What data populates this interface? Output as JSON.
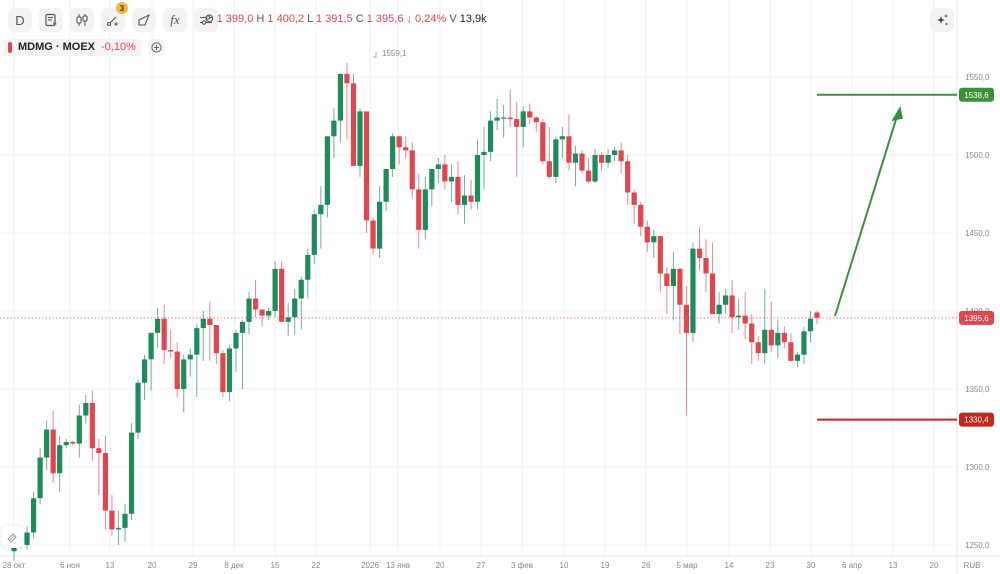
{
  "toolbar": {
    "interval_label": "D",
    "buttons": [
      "interval",
      "chart-type-list",
      "candles",
      "drawings",
      "drawing-tool",
      "indicators",
      "settings"
    ],
    "drawings_badge": "3",
    "indicators_label": "fx"
  },
  "ohlc": {
    "o_label": "O",
    "o": "1 399,0",
    "h_label": "H",
    "h": "1 400,2",
    "l_label": "L",
    "l": "1 391,5",
    "c_label": "C",
    "c": "1 395,6",
    "change": "↓ 0,24%",
    "v_label": "V",
    "v": "13,9k"
  },
  "legend": {
    "symbol": "MDMG · MOEX",
    "change": "-0,10%"
  },
  "colors": {
    "up": "#1f8a5b",
    "down": "#e0464f",
    "target": "#3d8f3a",
    "stop": "#c0271d",
    "grid": "#f0f0f2"
  },
  "chart_data": {
    "type": "candlestick",
    "title": "MDMG · MOEX, D",
    "currency": "RUB",
    "ylim": [
      1245,
      1575
    ],
    "y_ticks": [
      1250.0,
      1300.0,
      1350.0,
      1400.0,
      1450.0,
      1500.0,
      1550.0
    ],
    "y_tick_labels": [
      "1250,0",
      "1300,0",
      "1350,0",
      "1400,0",
      "1450,0",
      "1500,0",
      "1550,0"
    ],
    "x_tick_labels": [
      "28 окт",
      "6 ноя",
      "13",
      "20",
      "29",
      "8 дек",
      "15",
      "22",
      "2026",
      "13 янв",
      "20",
      "27",
      "3 фев",
      "10",
      "19",
      "26",
      "5 мар",
      "14",
      "23",
      "30",
      "6 апр",
      "13",
      "20"
    ],
    "high_annotation": "1559,1",
    "last_price": 1395.6,
    "last_price_label": "1395,6",
    "target_level": 1538.6,
    "target_label": "1538,6",
    "stop_level": 1330.4,
    "stop_label": "1330,4",
    "candles": [
      [
        1246,
        1252,
        1240,
        1250
      ],
      [
        1252,
        1258,
        1248,
        1250
      ],
      [
        1250,
        1262,
        1247,
        1258
      ],
      [
        1258,
        1284,
        1254,
        1280
      ],
      [
        1280,
        1312,
        1276,
        1306
      ],
      [
        1306,
        1330,
        1298,
        1324
      ],
      [
        1324,
        1336,
        1290,
        1296
      ],
      [
        1296,
        1320,
        1284,
        1314
      ],
      [
        1314,
        1318,
        1312,
        1316
      ],
      [
        1316,
        1317,
        1314,
        1315
      ],
      [
        1315,
        1340,
        1306,
        1333
      ],
      [
        1333,
        1346,
        1328,
        1341
      ],
      [
        1341,
        1349,
        1304,
        1312
      ],
      [
        1312,
        1318,
        1282,
        1309
      ],
      [
        1309,
        1320,
        1260,
        1272
      ],
      [
        1272,
        1282,
        1256,
        1260
      ],
      [
        1260,
        1272,
        1250,
        1261
      ],
      [
        1261,
        1276,
        1252,
        1270
      ],
      [
        1270,
        1328,
        1266,
        1322
      ],
      [
        1322,
        1356,
        1318,
        1354
      ],
      [
        1354,
        1372,
        1343,
        1369
      ],
      [
        1369,
        1382,
        1349,
        1386
      ],
      [
        1386,
        1402,
        1376,
        1395
      ],
      [
        1395,
        1404,
        1366,
        1375
      ],
      [
        1375,
        1388,
        1370,
        1374
      ],
      [
        1374,
        1380,
        1345,
        1350
      ],
      [
        1350,
        1372,
        1335,
        1369
      ],
      [
        1369,
        1376,
        1358,
        1372
      ],
      [
        1372,
        1392,
        1345,
        1389
      ],
      [
        1389,
        1400,
        1368,
        1395
      ],
      [
        1395,
        1406,
        1368,
        1391
      ],
      [
        1391,
        1388,
        1366,
        1373
      ],
      [
        1373,
        1375,
        1345,
        1348
      ],
      [
        1348,
        1378,
        1342,
        1376
      ],
      [
        1376,
        1388,
        1361,
        1386
      ],
      [
        1386,
        1394,
        1350,
        1393
      ],
      [
        1393,
        1412,
        1385,
        1408
      ],
      [
        1408,
        1420,
        1396,
        1401
      ],
      [
        1401,
        1400,
        1390,
        1397
      ],
      [
        1397,
        1402,
        1394,
        1400
      ],
      [
        1400,
        1432,
        1396,
        1427
      ],
      [
        1427,
        1432,
        1394,
        1393
      ],
      [
        1393,
        1405,
        1384,
        1396
      ],
      [
        1396,
        1414,
        1385,
        1408
      ],
      [
        1408,
        1422,
        1388,
        1420
      ],
      [
        1420,
        1440,
        1408,
        1436
      ],
      [
        1436,
        1465,
        1430,
        1462
      ],
      [
        1462,
        1480,
        1440,
        1468
      ],
      [
        1468,
        1506,
        1460,
        1512
      ],
      [
        1512,
        1530,
        1498,
        1522
      ],
      [
        1522,
        1545,
        1508,
        1552
      ],
      [
        1552,
        1559,
        1510,
        1546
      ],
      [
        1546,
        1552,
        1502,
        1493
      ],
      [
        1493,
        1530,
        1486,
        1528
      ],
      [
        1528,
        1512,
        1450,
        1458
      ],
      [
        1458,
        1460,
        1436,
        1440
      ],
      [
        1440,
        1480,
        1434,
        1470
      ],
      [
        1470,
        1478,
        1464,
        1491
      ],
      [
        1491,
        1514,
        1486,
        1512
      ],
      [
        1512,
        1508,
        1494,
        1505
      ],
      [
        1505,
        1512,
        1498,
        1503
      ],
      [
        1503,
        1508,
        1472,
        1478
      ],
      [
        1478,
        1488,
        1440,
        1452
      ],
      [
        1452,
        1486,
        1446,
        1478
      ],
      [
        1478,
        1480,
        1467,
        1491
      ],
      [
        1491,
        1498,
        1482,
        1494
      ],
      [
        1494,
        1500,
        1478,
        1483
      ],
      [
        1483,
        1494,
        1470,
        1486
      ],
      [
        1486,
        1496,
        1462,
        1468
      ],
      [
        1468,
        1487,
        1456,
        1474
      ],
      [
        1474,
        1484,
        1465,
        1470
      ],
      [
        1470,
        1510,
        1465,
        1500
      ],
      [
        1500,
        1518,
        1478,
        1502
      ],
      [
        1502,
        1528,
        1496,
        1522
      ],
      [
        1522,
        1536,
        1516,
        1524
      ],
      [
        1524,
        1532,
        1511,
        1524
      ],
      [
        1524,
        1542,
        1518,
        1523
      ],
      [
        1523,
        1534,
        1486,
        1518
      ],
      [
        1518,
        1531,
        1505,
        1528
      ],
      [
        1528,
        1533,
        1520,
        1524
      ],
      [
        1524,
        1525,
        1515,
        1521
      ],
      [
        1521,
        1523,
        1494,
        1496
      ],
      [
        1496,
        1518,
        1485,
        1486
      ],
      [
        1486,
        1512,
        1482,
        1510
      ],
      [
        1510,
        1518,
        1498,
        1512
      ],
      [
        1512,
        1526,
        1490,
        1495
      ],
      [
        1495,
        1506,
        1480,
        1501
      ],
      [
        1501,
        1503,
        1488,
        1490
      ],
      [
        1490,
        1498,
        1482,
        1483
      ],
      [
        1483,
        1504,
        1482,
        1500
      ],
      [
        1500,
        1502,
        1490,
        1495
      ],
      [
        1495,
        1504,
        1492,
        1500
      ],
      [
        1500,
        1505,
        1496,
        1503
      ],
      [
        1503,
        1508,
        1488,
        1496
      ],
      [
        1496,
        1500,
        1468,
        1476
      ],
      [
        1476,
        1478,
        1456,
        1468
      ],
      [
        1468,
        1470,
        1448,
        1454
      ],
      [
        1454,
        1458,
        1438,
        1444
      ],
      [
        1444,
        1452,
        1434,
        1448
      ],
      [
        1448,
        1445,
        1412,
        1424
      ],
      [
        1424,
        1428,
        1398,
        1416
      ],
      [
        1416,
        1438,
        1394,
        1427
      ],
      [
        1427,
        1428,
        1385,
        1404
      ],
      [
        1404,
        1416,
        1333,
        1386
      ],
      [
        1386,
        1444,
        1380,
        1440
      ],
      [
        1440,
        1454,
        1426,
        1434
      ],
      [
        1434,
        1446,
        1412,
        1424
      ],
      [
        1424,
        1444,
        1402,
        1398
      ],
      [
        1398,
        1412,
        1392,
        1404
      ],
      [
        1404,
        1414,
        1398,
        1410
      ],
      [
        1410,
        1420,
        1386,
        1396
      ],
      [
        1396,
        1408,
        1388,
        1397
      ],
      [
        1397,
        1412,
        1382,
        1392
      ],
      [
        1392,
        1398,
        1366,
        1380
      ],
      [
        1380,
        1384,
        1368,
        1373
      ],
      [
        1373,
        1414,
        1366,
        1388
      ],
      [
        1388,
        1406,
        1374,
        1378
      ],
      [
        1378,
        1394,
        1370,
        1386
      ],
      [
        1386,
        1390,
        1376,
        1380
      ],
      [
        1380,
        1386,
        1368,
        1368
      ],
      [
        1368,
        1374,
        1364,
        1372
      ],
      [
        1372,
        1390,
        1366,
        1387
      ],
      [
        1387,
        1400,
        1380,
        1395
      ],
      [
        1399,
        1400.2,
        1391.5,
        1395.6
      ]
    ]
  },
  "brush_icon": "brush-icon",
  "ai_icon": "sparkles-icon"
}
